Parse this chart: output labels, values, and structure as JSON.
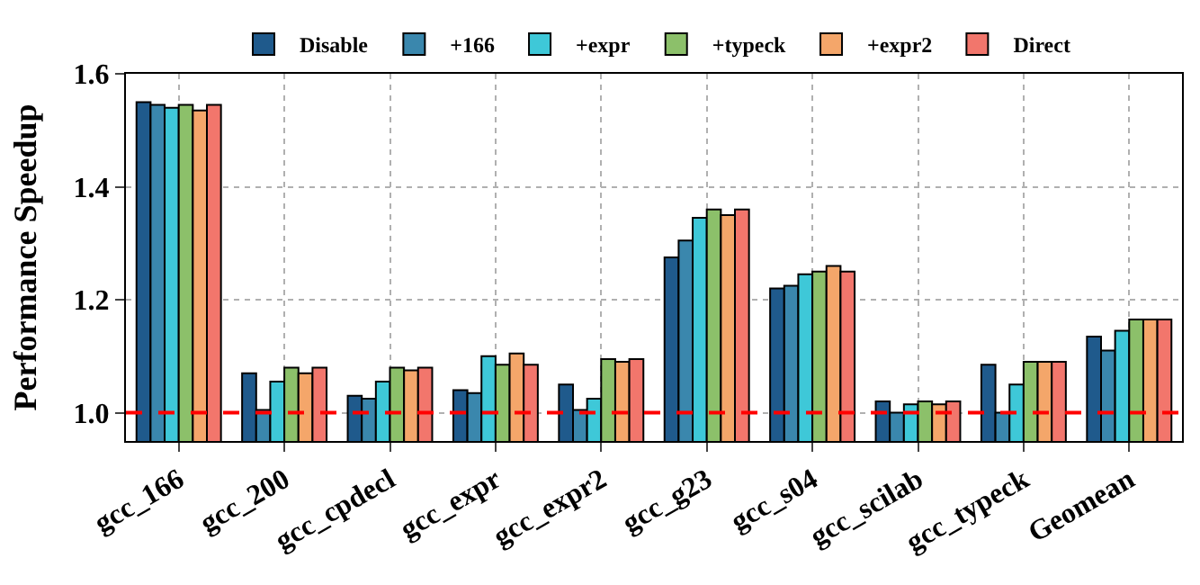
{
  "chart_data": {
    "type": "bar",
    "ylabel": "Performance Speedup",
    "categories": [
      "gcc_166",
      "gcc_200",
      "gcc_cpdecl",
      "gcc_expr",
      "gcc_expr2",
      "gcc_g23",
      "gcc_s04",
      "gcc_scilab",
      "gcc_typeck",
      "Geomean"
    ],
    "series": [
      {
        "name": "Disable",
        "color": "#1f5a8c",
        "values": [
          1.55,
          1.07,
          1.03,
          1.04,
          1.05,
          1.275,
          1.22,
          1.02,
          1.085,
          1.135
        ]
      },
      {
        "name": "+166",
        "color": "#3a87ad",
        "values": [
          1.545,
          1.005,
          1.025,
          1.035,
          1.005,
          1.305,
          1.225,
          1.0,
          1.0,
          1.11
        ]
      },
      {
        "name": "+expr",
        "color": "#3ec8d8",
        "values": [
          1.54,
          1.055,
          1.055,
          1.1,
          1.025,
          1.345,
          1.245,
          1.015,
          1.05,
          1.145
        ]
      },
      {
        "name": "+typeck",
        "color": "#8cc06a",
        "values": [
          1.545,
          1.08,
          1.08,
          1.085,
          1.095,
          1.36,
          1.25,
          1.02,
          1.09,
          1.165
        ]
      },
      {
        "name": "+expr2",
        "color": "#f4a66a",
        "values": [
          1.535,
          1.07,
          1.075,
          1.105,
          1.09,
          1.35,
          1.26,
          1.015,
          1.09,
          1.165
        ]
      },
      {
        "name": "Direct",
        "color": "#f2766c",
        "values": [
          1.545,
          1.08,
          1.08,
          1.085,
          1.095,
          1.36,
          1.25,
          1.02,
          1.09,
          1.165
        ]
      }
    ],
    "ylim": [
      0.95,
      1.6
    ],
    "yticks": [
      {
        "value": 1.0,
        "label": "1.0"
      },
      {
        "value": 1.2,
        "label": "1.2"
      },
      {
        "value": 1.4,
        "label": "1.4"
      },
      {
        "value": 1.6,
        "label": "1.6"
      }
    ],
    "ref_lines": [
      {
        "axis": "y",
        "value": 1.0,
        "color": "#ff0000",
        "line_style": "dashed"
      }
    ],
    "grid": true,
    "legend": "top"
  }
}
